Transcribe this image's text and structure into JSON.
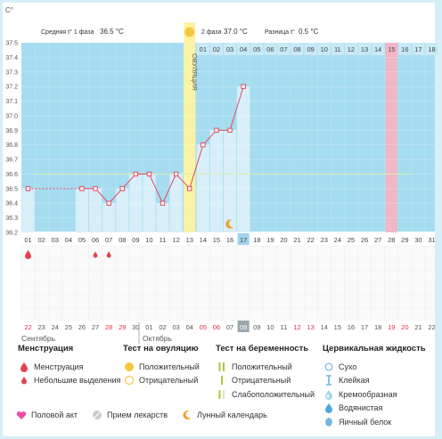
{
  "header": {
    "phase1_label": "Средняя t° 1 фаза",
    "phase1_value": "36.5 °C",
    "phase2_label": "2 фаза",
    "phase2_value": "37.0 °C",
    "diff_label": "Разница t°",
    "diff_value": "0.5 °C",
    "ovulation_label": "ОВУЛЯЦИЯ",
    "unit_label": "C°"
  },
  "colors": {
    "chart_bg": "#a6dcf0",
    "cell_bg": "#d8eff9",
    "ovulation": "#fbf3a4",
    "highlight_day": "#f1b6c8",
    "line": "#e24a5e",
    "coverline": "#d9efb3",
    "today_badge": "#9fd4ec",
    "weekend_text": "#e0304a"
  },
  "chart_data": {
    "type": "line",
    "ylabel": "C°",
    "ylim": [
      36.2,
      37.55
    ],
    "y_ticks": [
      "37.5",
      "37.4",
      "37.3",
      "37.2",
      "37.1",
      "37.0",
      "36.9",
      "36.8",
      "36.7",
      "36.6",
      "36.5",
      "36.4",
      "36.3",
      "36.2"
    ],
    "cycle_days": [
      "01",
      "02",
      "03",
      "04",
      "05",
      "06",
      "07",
      "08",
      "09",
      "10",
      "11",
      "12",
      "13",
      "14",
      "15",
      "16",
      "17",
      "18",
      "19",
      "20",
      "21",
      "22",
      "23",
      "24",
      "25",
      "26",
      "27",
      "28",
      "29",
      "30",
      "31"
    ],
    "phase2_days": [
      "01",
      "02",
      "03",
      "04",
      "05",
      "06",
      "07",
      "08",
      "09",
      "10",
      "11",
      "12",
      "13",
      "14",
      "15",
      "16",
      "17",
      "18"
    ],
    "series": [
      {
        "points": [
          {
            "day": 1,
            "value": 36.5
          },
          {
            "day": 5,
            "value": 36.5
          },
          {
            "day": 6,
            "value": 36.5
          },
          {
            "day": 7,
            "value": 36.4
          },
          {
            "day": 8,
            "value": 36.5
          },
          {
            "day": 9,
            "value": 36.6
          },
          {
            "day": 10,
            "value": 36.6
          },
          {
            "day": 11,
            "value": 36.4
          },
          {
            "day": 12,
            "value": 36.6
          },
          {
            "day": 13,
            "value": 36.5
          },
          {
            "day": 14,
            "value": 36.8
          },
          {
            "day": 15,
            "value": 36.9
          },
          {
            "day": 16,
            "value": 36.9
          },
          {
            "day": 17,
            "value": 37.2
          }
        ]
      }
    ],
    "coverline": 36.6,
    "ovulation_day": 13,
    "highlight_day": 28,
    "today_day": 17,
    "moon_day": 16,
    "menstruation_big_days": [
      1
    ],
    "menstruation_small_days": [
      6,
      7
    ]
  },
  "calendar": {
    "dates": [
      "22",
      "23",
      "24",
      "25",
      "26",
      "27",
      "28",
      "29",
      "30",
      "01",
      "02",
      "03",
      "04",
      "05",
      "06",
      "07",
      "08",
      "09",
      "10",
      "11",
      "12",
      "13",
      "14",
      "15",
      "16",
      "17",
      "18",
      "19",
      "20",
      "21",
      "22"
    ],
    "weekend_index": [
      0,
      6,
      7,
      13,
      14,
      20,
      21,
      27,
      28
    ],
    "today_index": 16,
    "month1": "Сентябрь",
    "month2": "Октябрь"
  },
  "legend": {
    "menstruation": {
      "title": "Менструация",
      "items": [
        "Менструация",
        "Небольшие выделения"
      ]
    },
    "ovulation_test": {
      "title": "Тест на овуляцию",
      "items": [
        "Положительный",
        "Отрицательный"
      ]
    },
    "pregnancy_test": {
      "title": "Тест на беременность",
      "items": [
        "Положительный",
        "Отрицательный",
        "Слабоположительный"
      ]
    },
    "cervical": {
      "title": "Цервикальная жидкость",
      "items": [
        "Сухо",
        "Клейкая",
        "Кремообразная",
        "Водянистая",
        "Яичный белок"
      ]
    },
    "bottom": [
      "Половой акт",
      "Прием лекарств",
      "Лунный календарь"
    ]
  }
}
